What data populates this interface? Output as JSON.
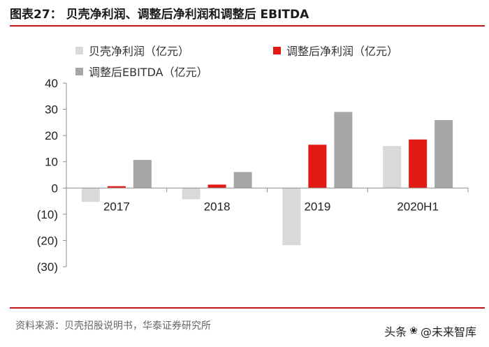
{
  "header": {
    "figure_title": "图表27：  贝壳净利润、调整后净利润和调整后 EBITDA"
  },
  "footer": {
    "source": "资料来源：贝壳招股说明书，华泰证券研究所",
    "watermark_prefix": "头条",
    "watermark_name": "@未来智库"
  },
  "chart_data": {
    "type": "bar",
    "title": "贝壳净利润、调整后净利润和调整后 EBITDA",
    "xlabel": "",
    "ylabel": "",
    "categories": [
      "2017",
      "2018",
      "2019",
      "2020H1"
    ],
    "ylim": [
      -30,
      40
    ],
    "yticks": [
      40,
      30,
      20,
      10,
      0,
      -10,
      -20,
      -30
    ],
    "ytick_labels": [
      "40",
      "30",
      "20",
      "10",
      "0",
      "(10)",
      "(20)",
      "(30)"
    ],
    "grid": false,
    "legend_position": "top",
    "series": [
      {
        "name": "贝壳净利润（亿元）",
        "color": "#d9d9d9",
        "values": [
          -5.3,
          -4.3,
          -21.8,
          16.0
        ]
      },
      {
        "name": "调整后净利润（亿元）",
        "color": "#e31a14",
        "values": [
          0.7,
          1.3,
          16.5,
          18.5
        ]
      },
      {
        "name": "调整后EBITDA（亿元）",
        "color": "#a6a6a6",
        "values": [
          10.7,
          6.1,
          29.0,
          25.9
        ]
      }
    ]
  }
}
